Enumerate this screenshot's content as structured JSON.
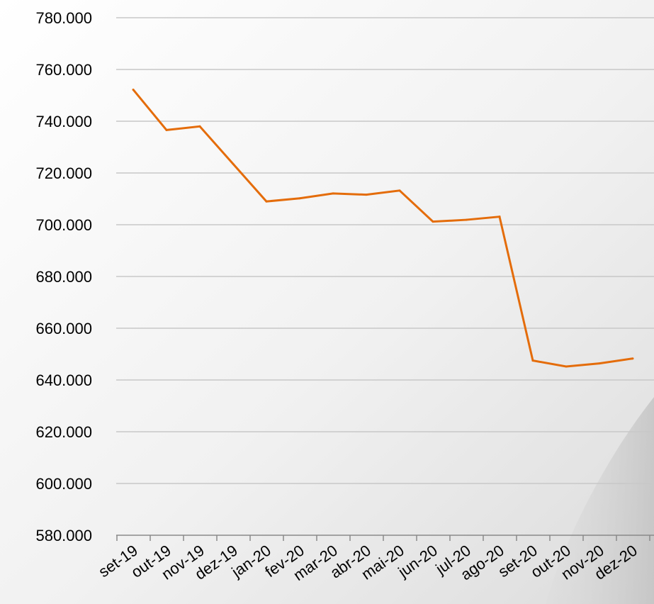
{
  "chart_data": {
    "type": "line",
    "categories": [
      "set-19",
      "out-19",
      "nov-19",
      "dez-19",
      "jan-20",
      "fev-20",
      "mar-20",
      "abr-20",
      "mai-20",
      "jun-20",
      "jul-20",
      "ago-20",
      "set-20",
      "out-20",
      "nov-20",
      "dez-20"
    ],
    "series": [
      {
        "values": [
          752200,
          736600,
          738000,
          723500,
          709000,
          710200,
          712100,
          711600,
          713200,
          701200,
          701900,
          703100,
          647500,
          645200,
          646400,
          648300
        ],
        "color": "#e46c0a"
      }
    ],
    "y_ticks": [
      "780.000",
      "760.000",
      "740.000",
      "720.000",
      "700.000",
      "680.000",
      "660.000",
      "640.000",
      "620.000",
      "600.000",
      "580.000"
    ],
    "ylim": [
      580000,
      780000
    ],
    "grid": true,
    "legend": "none"
  }
}
